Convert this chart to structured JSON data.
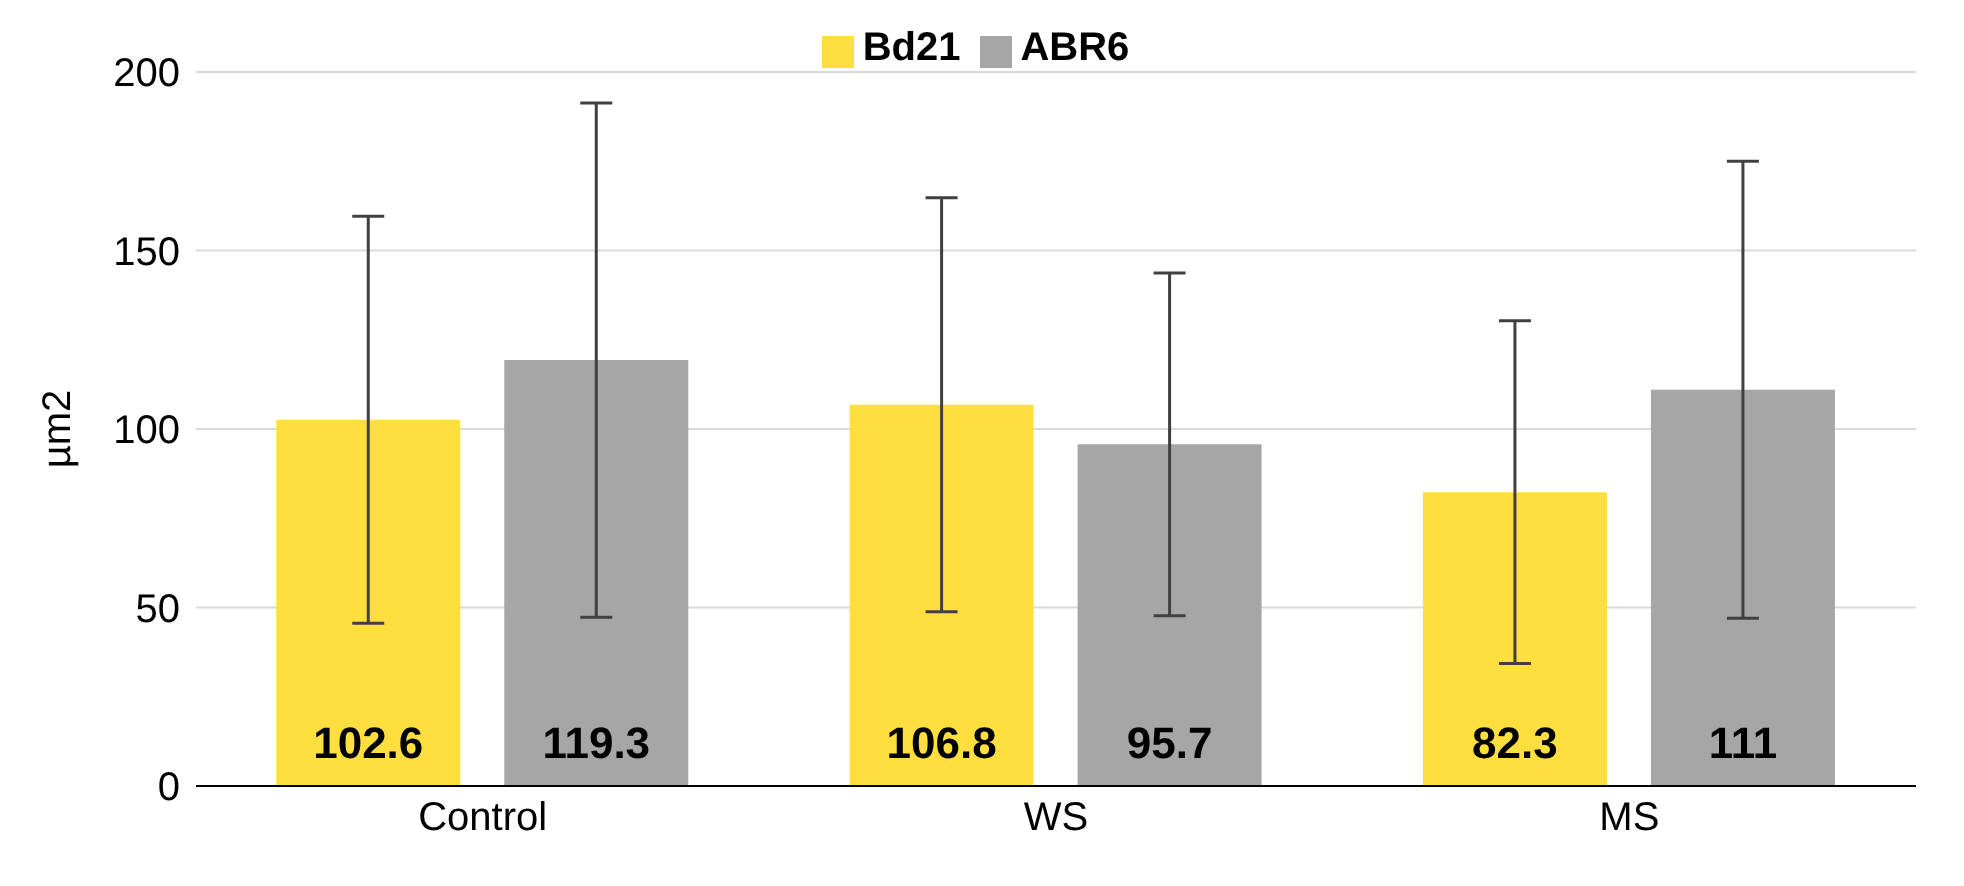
{
  "chart_data": {
    "type": "bar",
    "ylabel": "µm2",
    "categories": [
      "Control",
      "WS",
      "MS"
    ],
    "series": [
      {
        "name": "Bd21",
        "color": "#ffde3f",
        "values": [
          102.6,
          106.8,
          82.3
        ],
        "errors": [
          57,
          58,
          48
        ]
      },
      {
        "name": "ABR6",
        "color": "#a6a6a6",
        "values": [
          119.3,
          95.7,
          111
        ],
        "errors": [
          72,
          48,
          64
        ]
      }
    ],
    "ylim": [
      0,
      200
    ],
    "yticks": [
      0,
      50,
      100,
      150,
      200
    ],
    "grid": "y",
    "legend": "top",
    "data_labels": true
  }
}
